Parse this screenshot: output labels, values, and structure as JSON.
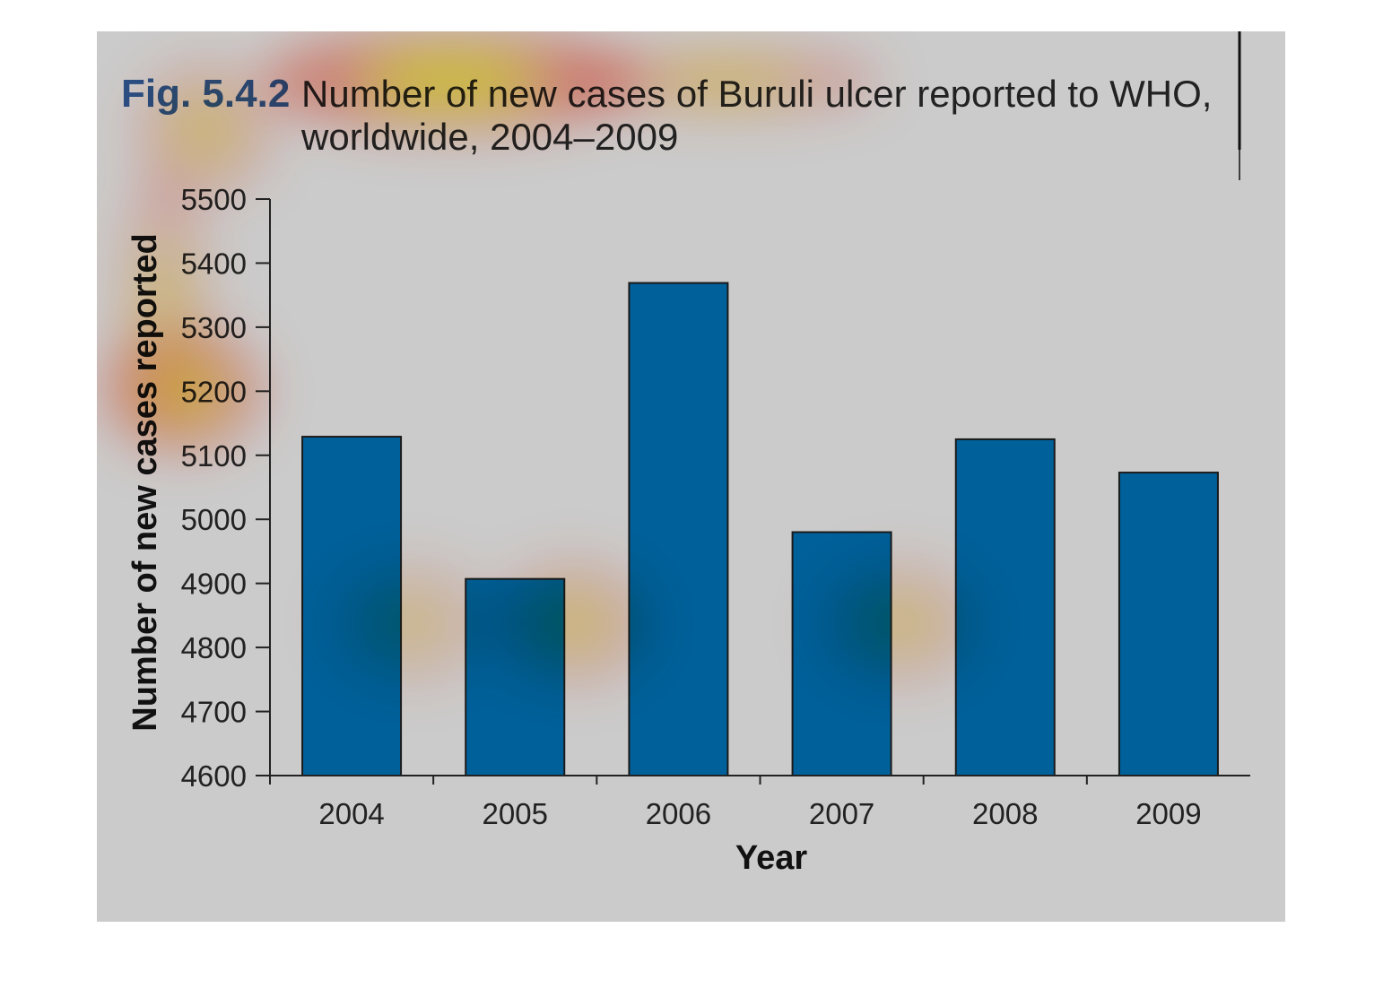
{
  "figure": {
    "number": "Fig. 5.4.2",
    "title_line1": "Number of new cases of Buruli ulcer reported to WHO,",
    "title_line2": "worldwide, 2004–2009"
  },
  "colors": {
    "panel": "#cbcbcb",
    "bar": "#00609a",
    "bar_stroke": "#1a1a1a",
    "figure_number": "#2b4f86",
    "title_text": "#222222",
    "axis": "#222222"
  },
  "overlay": {
    "type": "attention heatmap",
    "hotspots": [
      {
        "x_category": null,
        "label": "title",
        "intensity": 1.0
      },
      {
        "x_category": null,
        "label": "y-axis",
        "intensity": 0.9
      },
      {
        "x_category": "2005",
        "label": "bar",
        "intensity": 0.7
      },
      {
        "x_category": "2007",
        "label": "bar",
        "intensity": 0.6
      },
      {
        "x_category": "2004",
        "label": "bar",
        "intensity": 0.5
      }
    ]
  },
  "chart_data": {
    "type": "bar",
    "title": "Number of new cases of Buruli ulcer reported to WHO, worldwide, 2004–2009",
    "xlabel": "Year",
    "ylabel": "Number of new cases reported",
    "categories": [
      "2004",
      "2005",
      "2006",
      "2007",
      "2008",
      "2009"
    ],
    "values": [
      5129,
      4907,
      5369,
      4980,
      5125,
      5073
    ],
    "ylim": [
      4600,
      5500
    ],
    "yticks": [
      4600,
      4700,
      4800,
      4900,
      5000,
      5100,
      5200,
      5300,
      5400,
      5500
    ],
    "grid": false,
    "legend": "none"
  }
}
